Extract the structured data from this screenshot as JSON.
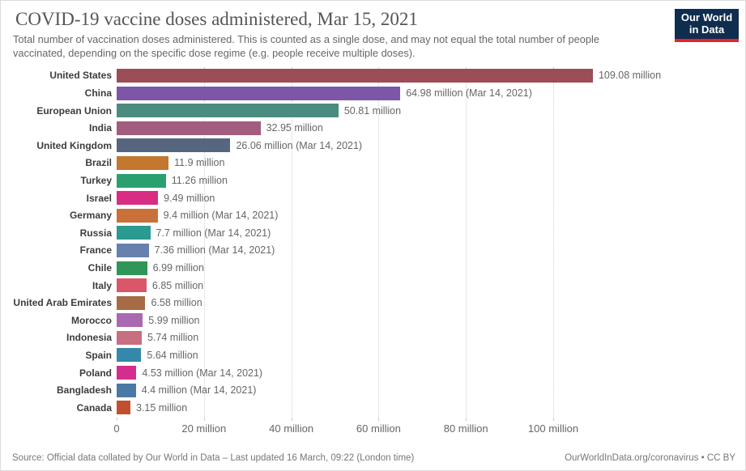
{
  "header": {
    "logo": {
      "line1": "Our World",
      "line2": "in Data",
      "bg": "#0f2d4e",
      "accent": "#e0262c"
    }
  },
  "chart_data": {
    "type": "bar",
    "orientation": "horizontal",
    "title": "COVID-19 vaccine doses administered, Mar 15, 2021",
    "subtitle": "Total number of vaccination doses administered. This is counted as a single dose, and may not equal the total number of people vaccinated, depending on the specific dose regime (e.g. people receive multiple doses).",
    "xlabel": "",
    "ylabel": "",
    "xlim": [
      0,
      144
    ],
    "grid": "dotted-vertical",
    "categories": [
      "United States",
      "China",
      "European Union",
      "India",
      "United Kingdom",
      "Brazil",
      "Turkey",
      "Israel",
      "Germany",
      "Russia",
      "France",
      "Chile",
      "Italy",
      "United Arab Emirates",
      "Morocco",
      "Indonesia",
      "Spain",
      "Poland",
      "Bangladesh",
      "Canada"
    ],
    "values": [
      109.08,
      64.98,
      50.81,
      32.95,
      26.06,
      11.9,
      11.26,
      9.49,
      9.4,
      7.7,
      7.36,
      6.99,
      6.85,
      6.58,
      5.99,
      5.74,
      5.64,
      4.53,
      4.4,
      3.15
    ],
    "value_labels": [
      "109.08 million",
      "64.98 million (Mar 14, 2021)",
      "50.81 million",
      "32.95 million",
      "26.06 million (Mar 14, 2021)",
      "11.9 million",
      "11.26 million",
      "9.49 million",
      "9.4 million (Mar 14, 2021)",
      "7.7 million (Mar 14, 2021)",
      "7.36 million (Mar 14, 2021)",
      "6.99 million",
      "6.85 million",
      "6.58 million",
      "5.99 million",
      "5.74 million",
      "5.64 million",
      "4.53 million (Mar 14, 2021)",
      "4.4 million (Mar 14, 2021)",
      "3.15 million"
    ],
    "colors": [
      "#9b4e56",
      "#7e56a8",
      "#4c8b80",
      "#a25c7e",
      "#57667f",
      "#c3772f",
      "#2aa06f",
      "#d92c83",
      "#ca7139",
      "#2b9a90",
      "#6681ae",
      "#2f9558",
      "#da5669",
      "#a76b45",
      "#aa68b1",
      "#c86e81",
      "#3489ab",
      "#d32e8b",
      "#4a79a6",
      "#c25030"
    ],
    "x_ticks": [
      {
        "value": 0,
        "label": "0"
      },
      {
        "value": 20,
        "label": "20 million"
      },
      {
        "value": 40,
        "label": "40 million"
      },
      {
        "value": 60,
        "label": "60 million"
      },
      {
        "value": 80,
        "label": "80 million"
      },
      {
        "value": 100,
        "label": "100 million"
      }
    ]
  },
  "footer": {
    "source": "Source: Official data collated by Our World in Data – Last updated 16 March, 09:22 (London time)",
    "link": "OurWorldInData.org/coronavirus • CC BY"
  }
}
